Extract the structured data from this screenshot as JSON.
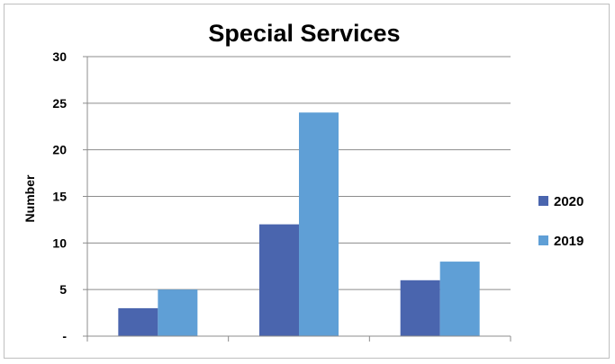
{
  "chart_data": {
    "type": "bar",
    "title": "Special Services",
    "xlabel": "",
    "ylabel": "Number",
    "categories": [
      "",
      "",
      ""
    ],
    "ylim": [
      0,
      30
    ],
    "yticks": [
      "-",
      "5",
      "10",
      "15",
      "20",
      "25",
      "30"
    ],
    "grid": true,
    "legend_position": "right",
    "series": [
      {
        "name": "2020",
        "color": "#4a65ae",
        "values": [
          3,
          12,
          6
        ]
      },
      {
        "name": "2019",
        "color": "#5f9fd6",
        "values": [
          5,
          24,
          8
        ]
      }
    ]
  }
}
